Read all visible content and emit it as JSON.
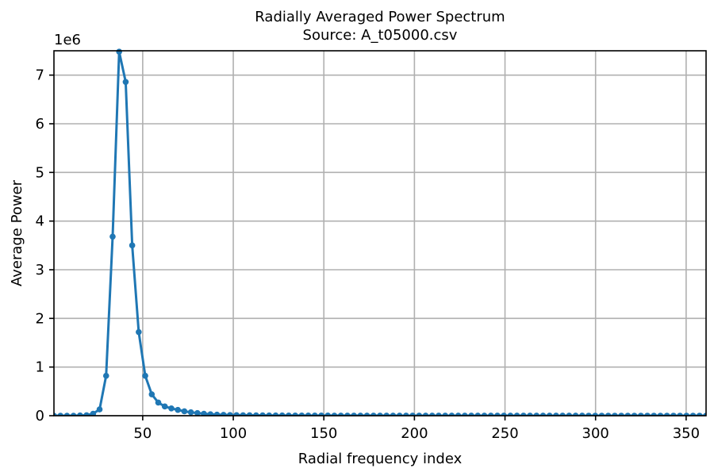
{
  "chart_data": {
    "type": "line",
    "title": "Radially Averaged Power Spectrum",
    "subtitle": "Source: A_t05000.csv",
    "xlabel": "Radial frequency index",
    "ylabel": "Average Power",
    "y_offset_label": "1e6",
    "y_scale_factor": 1000000,
    "xlim": [
      1,
      361
    ],
    "ylim": [
      0,
      7500000
    ],
    "x_ticks": [
      50,
      100,
      150,
      200,
      250,
      300,
      350
    ],
    "y_ticks": [
      0,
      1,
      2,
      3,
      4,
      5,
      6,
      7
    ],
    "grid": true,
    "legend": "none",
    "series_color": "#1f77b4",
    "series": [
      {
        "name": "",
        "x": [
          1,
          4.6,
          8.2,
          11.8,
          15.4,
          19,
          22.6,
          26.2,
          29.8,
          33.4,
          37,
          40.6,
          44.2,
          47.8,
          51.4,
          55,
          58.6,
          62.2,
          65.8,
          69.4,
          73,
          76.6,
          80.2,
          83.8,
          87.4,
          91,
          94.6,
          98.2,
          101.8,
          105.4,
          109,
          112.6,
          116.2,
          119.8,
          123.4,
          127,
          130.6,
          134.2,
          137.8,
          141.4,
          145,
          148.6,
          152.2,
          155.8,
          159.4,
          163,
          166.6,
          170.2,
          173.8,
          177.4,
          181,
          184.6,
          188.2,
          191.8,
          195.4,
          199,
          202.6,
          206.2,
          209.8,
          213.4,
          217,
          220.6,
          224.2,
          227.8,
          231.4,
          235,
          238.6,
          242.2,
          245.8,
          249.4,
          253,
          256.6,
          260.2,
          263.8,
          267.4,
          271,
          274.6,
          278.2,
          281.8,
          285.4,
          289,
          292.6,
          296.2,
          299.8,
          303.4,
          307,
          310.6,
          314.2,
          317.8,
          321.4,
          325,
          328.6,
          332.2,
          335.8,
          339.4,
          343,
          346.6,
          350.2,
          353.8,
          357.4,
          361
        ],
        "values": [
          0,
          0,
          0,
          0,
          5000,
          10000,
          40000,
          130000,
          820000,
          3680000,
          7480000,
          6860000,
          3500000,
          1720000,
          820000,
          440000,
          270000,
          190000,
          150000,
          120000,
          90000,
          70000,
          55000,
          40000,
          30000,
          22000,
          18000,
          14000,
          12000,
          10000,
          9000,
          8000,
          7000,
          6000,
          5000,
          5000,
          4000,
          4000,
          3500,
          3000,
          3000,
          2500,
          2500,
          2000,
          2000,
          2000,
          1800,
          1600,
          1500,
          1400,
          1300,
          1200,
          1100,
          1000,
          1000,
          900,
          900,
          800,
          800,
          800,
          700,
          700,
          700,
          600,
          600,
          600,
          500,
          500,
          500,
          500,
          400,
          400,
          400,
          400,
          400,
          300,
          300,
          300,
          300,
          300,
          300,
          300,
          200,
          200,
          200,
          200,
          200,
          200,
          200,
          200,
          200,
          200,
          150,
          150,
          150,
          150,
          150,
          150,
          150,
          150,
          150
        ]
      }
    ]
  }
}
